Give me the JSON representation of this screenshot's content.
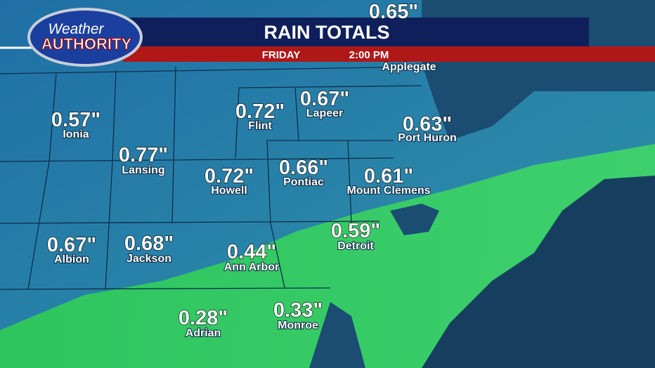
{
  "logo": {
    "line1": "Weather",
    "line2": "AUTHORITY"
  },
  "header": {
    "title": "RAIN TOTALS",
    "day": "FRIDAY",
    "time": "2:00 PM"
  },
  "locations": [
    {
      "name": "Applegate",
      "amount": "0.65\""
    },
    {
      "name": "Ionia",
      "amount": "0.57\""
    },
    {
      "name": "Lansing",
      "amount": "0.77\""
    },
    {
      "name": "Flint",
      "amount": "0.72\""
    },
    {
      "name": "Lapeer",
      "amount": "0.67\""
    },
    {
      "name": "Port Huron",
      "amount": "0.63\""
    },
    {
      "name": "Howell",
      "amount": "0.72\""
    },
    {
      "name": "Pontiac",
      "amount": "0.66\""
    },
    {
      "name": "Mount Clemens",
      "amount": "0.61\""
    },
    {
      "name": "Albion",
      "amount": "0.67\""
    },
    {
      "name": "Jackson",
      "amount": "0.68\""
    },
    {
      "name": "Ann Arbor",
      "amount": "0.44\""
    },
    {
      "name": "Detroit",
      "amount": "0.59\""
    },
    {
      "name": "Adrian",
      "amount": "0.28\""
    },
    {
      "name": "Monroe",
      "amount": "0.33\""
    }
  ]
}
